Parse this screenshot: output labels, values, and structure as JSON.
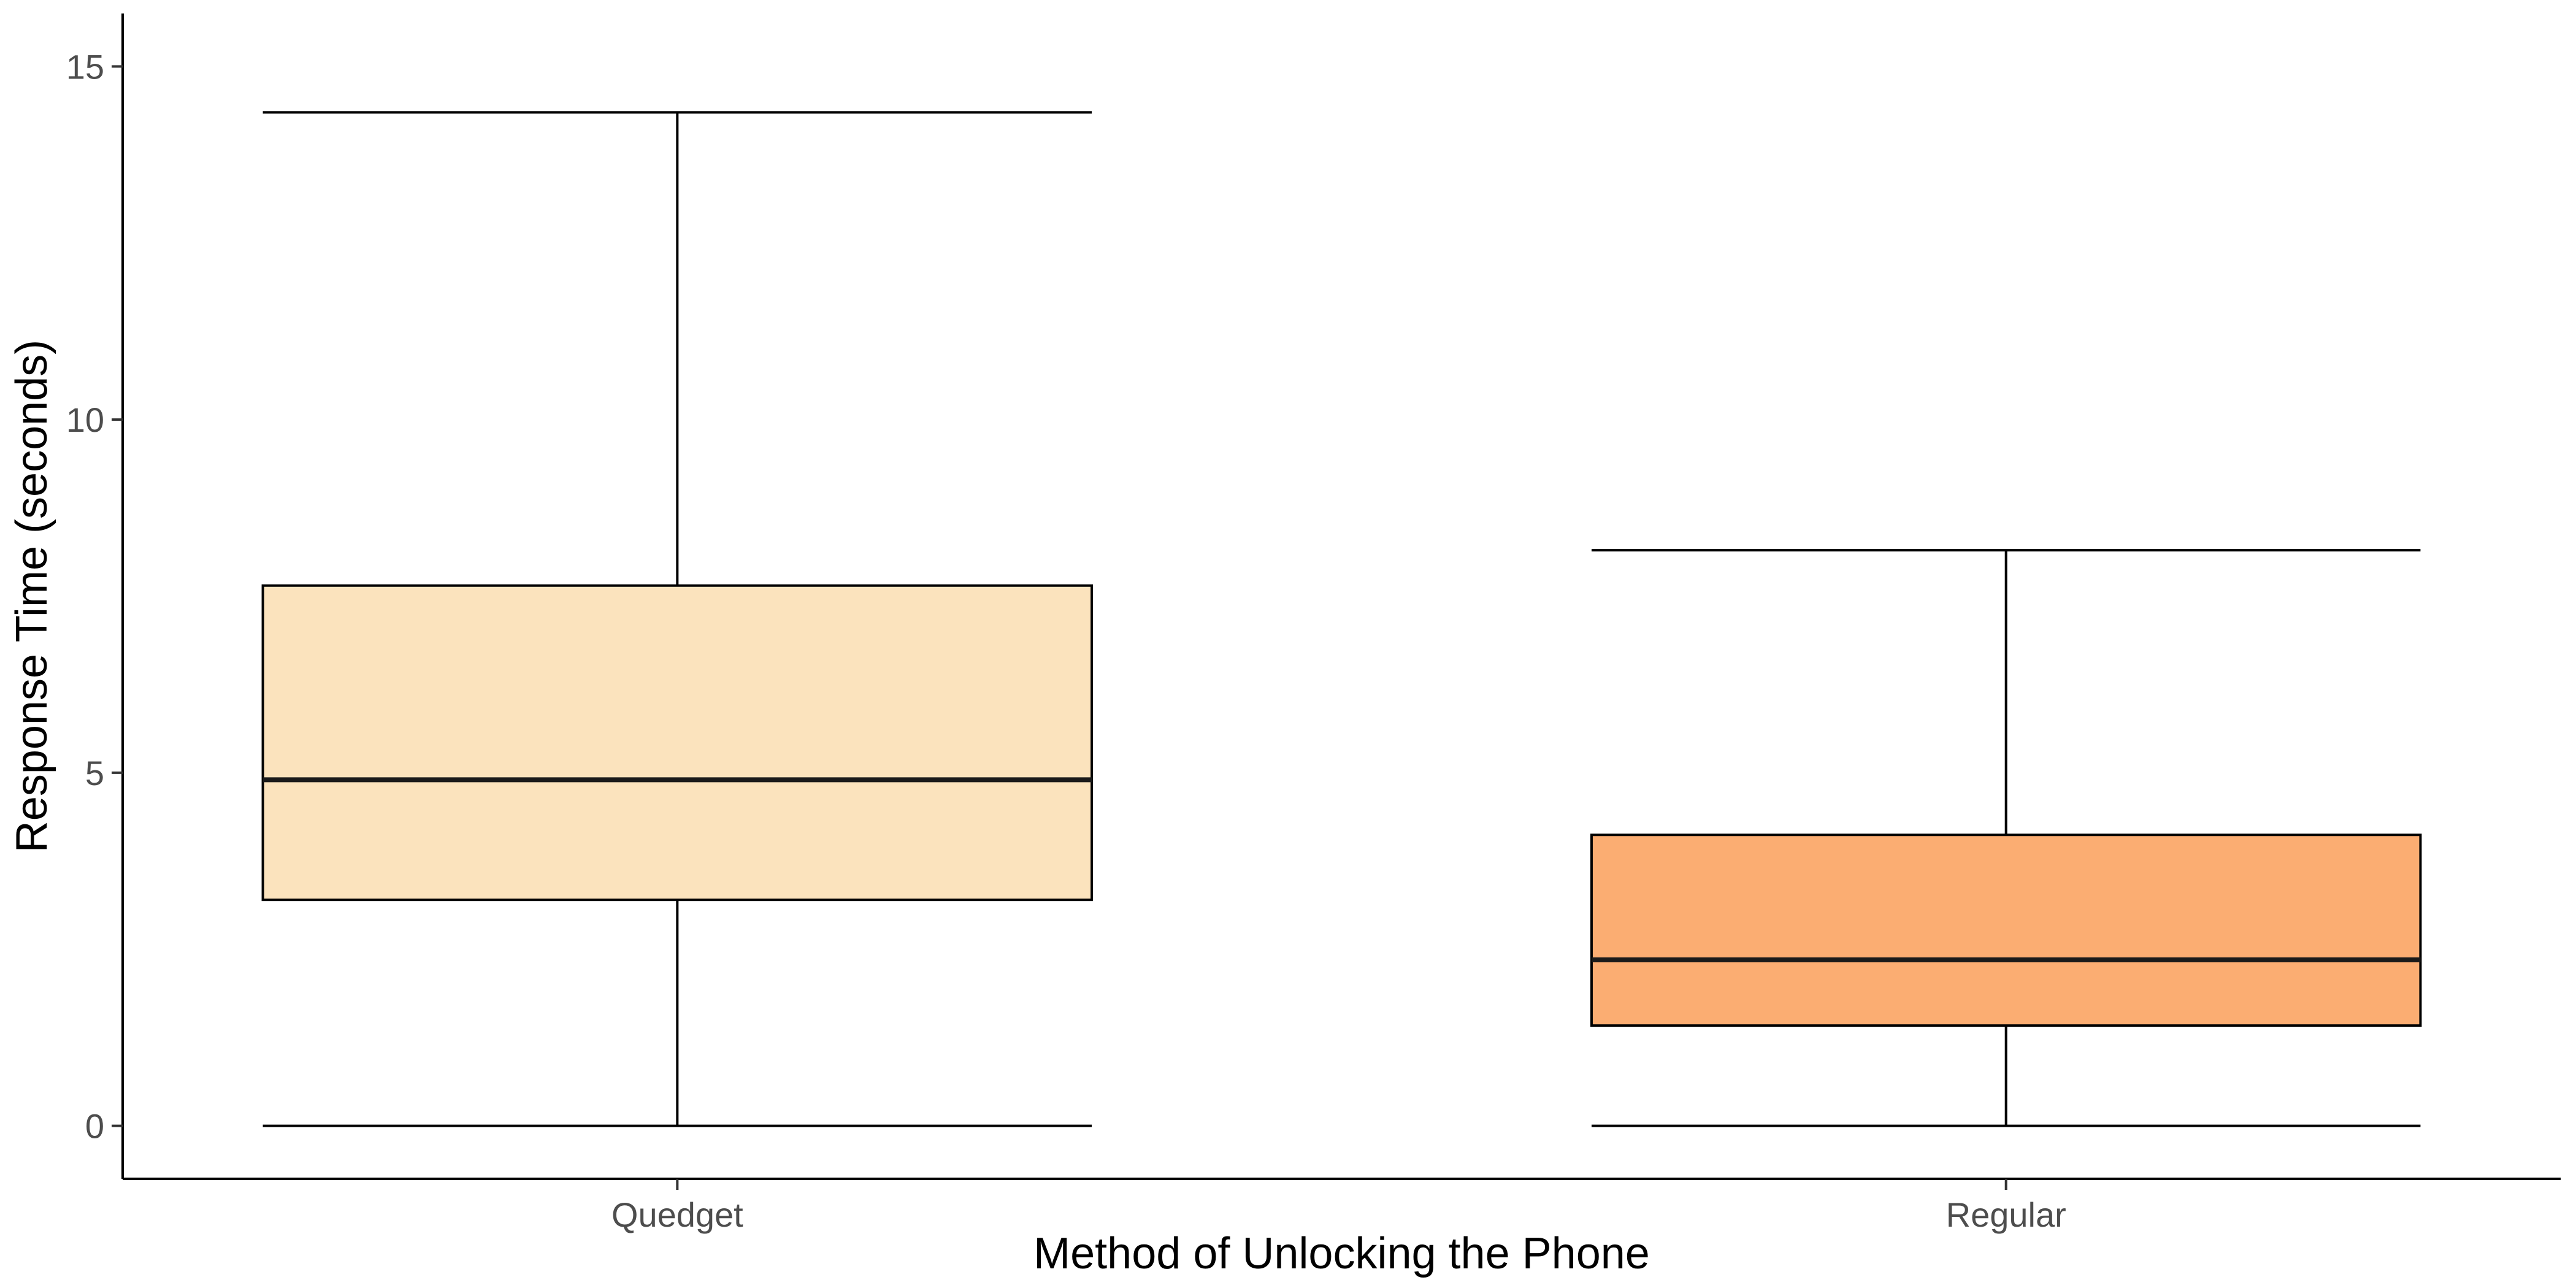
{
  "chart_data": {
    "type": "box",
    "xlabel": "Method of Unlocking the Phone",
    "ylabel": "Response Time (seconds)",
    "ylim": [
      -0.75,
      15.75
    ],
    "yticks": [
      0,
      5,
      10,
      15
    ],
    "grid": false,
    "legend": "none",
    "categories": [
      "Quedget",
      "Regular"
    ],
    "boxes": [
      {
        "category": "Quedget",
        "whisker_low": 0,
        "q1": 3.2,
        "median": 4.9,
        "q3": 7.65,
        "whisker_high": 14.35,
        "fill": "#FBE3BD"
      },
      {
        "category": "Regular",
        "whisker_low": 0,
        "q1": 1.42,
        "median": 2.35,
        "q3": 4.12,
        "whisker_high": 8.15,
        "fill": "#FBAD72"
      }
    ]
  }
}
